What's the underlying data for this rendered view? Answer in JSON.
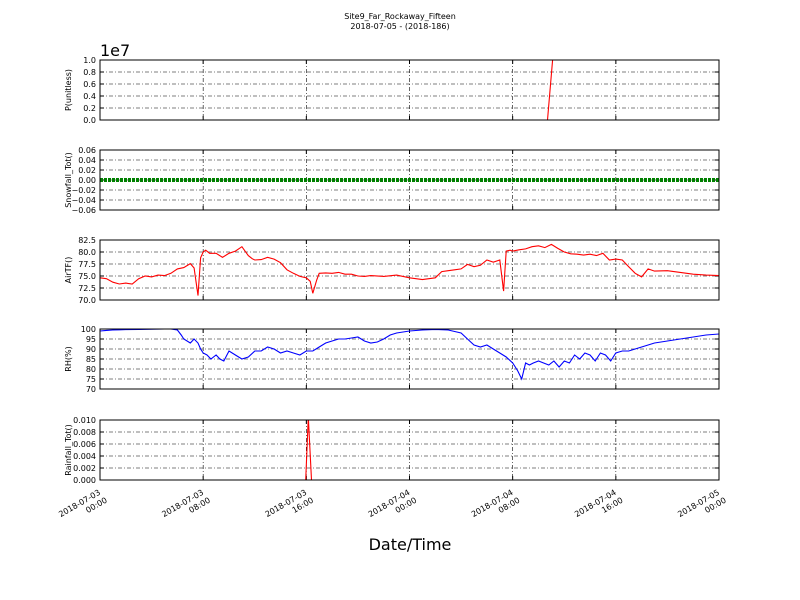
{
  "title": "Site9_Far_Rockaway_Fifteen",
  "subtitle": "2018-07-05 - (2018-186)",
  "xlabel": "Date/Time",
  "x_ticks": [
    [
      "2018-07-03",
      "00:00"
    ],
    [
      "2018-07-03",
      "08:00"
    ],
    [
      "2018-07-03",
      "16:00"
    ],
    [
      "2018-07-04",
      "00:00"
    ],
    [
      "2018-07-04",
      "08:00"
    ],
    [
      "2018-07-04",
      "16:00"
    ],
    [
      "2018-07-05",
      "00:00"
    ]
  ],
  "chart_data": [
    {
      "type": "line",
      "ylabel": "P(unitless)",
      "offset_label": "1e7",
      "ylim": [
        0,
        1.0
      ],
      "yticks": [
        "0.0",
        "0.2",
        "0.4",
        "0.6",
        "0.8",
        "1.0"
      ],
      "grid": true,
      "color": "#ff0000",
      "x_hours": [
        0,
        34.7,
        35.1
      ],
      "values": [
        0,
        0,
        1.0
      ]
    },
    {
      "type": "line",
      "ylabel": "Snowfall_Tot()",
      "ylim": [
        -0.06,
        0.06
      ],
      "yticks": [
        "−0.06",
        "−0.04",
        "−0.02",
        "0.00",
        "0.02",
        "0.04",
        "0.06"
      ],
      "grid": true,
      "color": "#008000",
      "marker": "dot",
      "x_hours": [
        0,
        48
      ],
      "values": [
        0,
        0
      ]
    },
    {
      "type": "line",
      "ylabel": "AirTF()",
      "ylim": [
        70,
        83.5
      ],
      "yticks": [
        "70.0",
        "72.5",
        "75.0",
        "77.5",
        "80.0",
        "82.5"
      ],
      "grid": true,
      "color": "#ff0000",
      "x_hours": [
        0,
        0.5,
        1,
        1.5,
        2,
        2.5,
        3,
        3.5,
        4,
        4.5,
        5,
        5.5,
        6,
        6.5,
        7,
        7.3,
        7.6,
        7.8,
        8.0,
        8.2,
        8.5,
        9,
        9.5,
        10,
        10.5,
        11,
        11.5,
        11.8,
        12,
        12.5,
        13,
        13.5,
        14,
        14.5,
        15,
        15.5,
        16,
        16.3,
        16.5,
        16.8,
        17,
        17.5,
        18,
        18.5,
        19,
        19.5,
        20,
        20.5,
        21,
        22,
        23,
        24,
        25,
        26,
        26.5,
        27,
        27.5,
        28,
        28.5,
        29,
        29.5,
        30,
        30.5,
        31,
        31.3,
        31.5,
        31.8,
        32,
        32.5,
        33,
        33.5,
        34,
        34.5,
        35,
        35.5,
        36,
        36.5,
        37,
        37.5,
        38,
        38.5,
        39,
        39.5,
        40,
        40.5,
        41,
        41.5,
        42,
        42.5,
        43,
        44,
        45,
        46,
        47,
        48
      ],
      "values": [
        75.0,
        74.8,
        74.0,
        73.6,
        73.8,
        73.6,
        74.8,
        75.4,
        75.2,
        75.6,
        75.5,
        76.0,
        77.0,
        77.3,
        78.2,
        77.2,
        71.0,
        79.5,
        80.8,
        81.2,
        80.5,
        80.5,
        79.6,
        80.5,
        81.0,
        82.0,
        80.0,
        79.3,
        79.0,
        79.1,
        79.6,
        79.2,
        78.4,
        76.8,
        76.0,
        75.3,
        75.0,
        74.2,
        71.5,
        74.5,
        76.0,
        76.1,
        76.0,
        76.2,
        75.8,
        75.8,
        75.4,
        75.3,
        75.5,
        75.3,
        75.6,
        75.0,
        74.6,
        75.0,
        76.4,
        76.6,
        76.8,
        77.0,
        78.0,
        77.5,
        77.8,
        79.0,
        78.5,
        79.0,
        72.0,
        81.0,
        81.2,
        81.0,
        81.3,
        81.5,
        82.0,
        82.2,
        81.8,
        82.5,
        81.6,
        80.8,
        80.4,
        80.3,
        80.1,
        80.3,
        80.0,
        80.5,
        79.0,
        79.2,
        79.0,
        77.5,
        76.0,
        75.2,
        77.0,
        76.5,
        76.6,
        76.2,
        75.8,
        75.6,
        75.5
      ]
    },
    {
      "type": "line",
      "ylabel": "RH(%)",
      "ylim": [
        70,
        100
      ],
      "yticks": [
        "70",
        "75",
        "80",
        "85",
        "90",
        "95",
        "100"
      ],
      "grid": true,
      "color": "#0000ff",
      "x_hours": [
        0,
        0.5,
        1,
        1.5,
        2,
        3,
        4,
        5,
        5.5,
        6,
        6.3,
        6.5,
        7,
        7.3,
        7.6,
        7.8,
        8,
        8.3,
        8.6,
        9,
        9.3,
        9.6,
        10,
        10.5,
        11,
        11.5,
        12,
        12.5,
        13,
        13.5,
        14,
        14.5,
        15,
        15.5,
        16,
        16.5,
        17,
        17.5,
        18,
        18.5,
        19,
        19.5,
        20,
        20.5,
        21,
        21.5,
        22,
        22.5,
        23,
        24,
        25,
        26,
        27,
        28,
        28.5,
        29,
        29.5,
        30,
        30.5,
        31,
        31.5,
        32,
        32.4,
        32.7,
        33,
        33.3,
        33.6,
        34,
        34.4,
        34.8,
        35.2,
        35.6,
        36,
        36.4,
        36.8,
        37.2,
        37.6,
        38,
        38.4,
        38.8,
        39.2,
        39.6,
        40,
        40.5,
        41,
        41.5,
        42,
        42.5,
        43,
        43.5,
        44,
        45,
        46,
        47,
        48
      ],
      "values": [
        99,
        99.3,
        99.5,
        99.6,
        99.7,
        99.8,
        99.9,
        100,
        100,
        99.5,
        97,
        95,
        93,
        95,
        93,
        90,
        88,
        87,
        85,
        87,
        85,
        84,
        89,
        87,
        85,
        86,
        89,
        89,
        91,
        90,
        88,
        89,
        88,
        87,
        89,
        89,
        91,
        93,
        94,
        95,
        95,
        95.5,
        96,
        94,
        93,
        93.5,
        95,
        97,
        98,
        99,
        99.5,
        99.8,
        99.5,
        98,
        95,
        92,
        91,
        92,
        90,
        88,
        86,
        83,
        79,
        75,
        83,
        82,
        83,
        84,
        83,
        82,
        84,
        81,
        84,
        83,
        87,
        85,
        88,
        87,
        84,
        88,
        87,
        84,
        88,
        89,
        89,
        90,
        91,
        92,
        93,
        93.5,
        94,
        95,
        96,
        97,
        97.5
      ]
    },
    {
      "type": "line",
      "ylabel": "Rainfall_Tot()",
      "ylim": [
        0,
        0.01
      ],
      "yticks": [
        "0.000",
        "0.002",
        "0.004",
        "0.006",
        "0.008",
        "0.010"
      ],
      "grid": true,
      "color": "#ff0000",
      "x_hours": [
        0,
        15.95,
        16.15,
        16.4,
        48
      ],
      "values": [
        0,
        0,
        0.0105,
        0,
        0
      ]
    }
  ]
}
